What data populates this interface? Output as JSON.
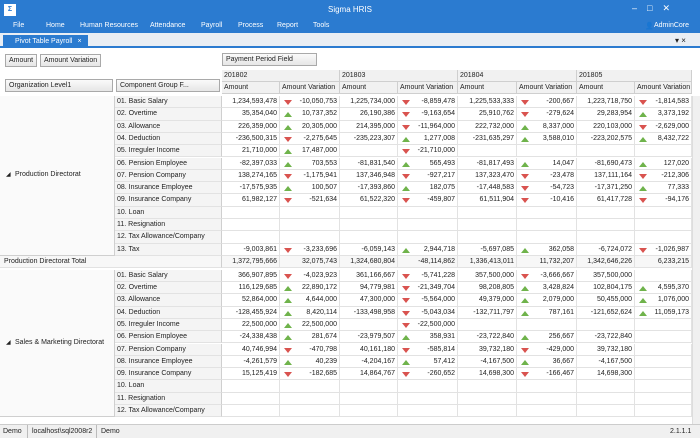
{
  "window": {
    "title": "Sigma HRIS"
  },
  "menu": [
    "File",
    "Home",
    "Human Resources",
    "Attendance",
    "Payroll",
    "Process",
    "Report",
    "Tools"
  ],
  "user": "AdminCore",
  "tab": "Pivot Table Payroll",
  "pivot": {
    "data_fields": [
      "Amount",
      "Amount Variation"
    ],
    "column_field": "Payment Period Field",
    "row_fields": [
      "Organization Level1",
      "Component Group F..."
    ],
    "periods": [
      "201802",
      "201803",
      "201804",
      "201805"
    ],
    "measures": [
      "Amount",
      "Amount Variation"
    ],
    "groups": [
      {
        "name": "Production Directorat",
        "rows": [
          {
            "label": "01. Basic Salary",
            "cells": [
              "1,234,593,478",
              "-10,050,753",
              "1,225,734,000",
              "-8,859,478",
              "1,225,533,333",
              "-200,667",
              "1,223,718,750",
              "-1,814,583"
            ]
          },
          {
            "label": "02. Overtime",
            "cells": [
              "35,354,040",
              "10,737,352",
              "26,190,386",
              "-9,163,654",
              "25,910,762",
              "-279,624",
              "29,283,954",
              "3,373,192"
            ]
          },
          {
            "label": "03. Allowance",
            "cells": [
              "226,359,000",
              "20,305,000",
              "214,395,000",
              "-11,964,000",
              "222,732,000",
              "8,337,000",
              "220,103,000",
              "-2,629,000"
            ]
          },
          {
            "label": "04. Deduction",
            "cells": [
              "-236,500,315",
              "-2,275,645",
              "-235,223,307",
              "1,277,008",
              "-231,635,297",
              "3,588,010",
              "-223,202,575",
              "8,432,722"
            ]
          },
          {
            "label": "05. Irreguler Income",
            "cells": [
              "21,710,000",
              "17,487,000",
              null,
              "-21,710,000",
              null,
              null,
              null,
              null
            ]
          },
          {
            "label": "06. Pension Employee",
            "cells": [
              "-82,397,033",
              "703,553",
              "-81,831,540",
              "565,493",
              "-81,817,493",
              "14,047",
              "-81,690,473",
              "127,020"
            ]
          },
          {
            "label": "07. Pension Company",
            "cells": [
              "138,274,165",
              "-1,175,941",
              "137,346,948",
              "-927,217",
              "137,323,470",
              "-23,478",
              "137,111,164",
              "-212,306"
            ]
          },
          {
            "label": "08. Insurance Employee",
            "cells": [
              "-17,575,935",
              "100,507",
              "-17,393,860",
              "182,075",
              "-17,448,583",
              "-54,723",
              "-17,371,250",
              "77,333"
            ]
          },
          {
            "label": "09. Insurance Company",
            "cells": [
              "61,982,127",
              "-521,634",
              "61,522,320",
              "-459,807",
              "61,511,904",
              "-10,416",
              "61,417,728",
              "-94,176"
            ]
          },
          {
            "label": "10. Loan",
            "cells": [
              null,
              null,
              null,
              null,
              null,
              null,
              null,
              null
            ]
          },
          {
            "label": "11. Resignation",
            "cells": [
              null,
              null,
              null,
              null,
              null,
              null,
              null,
              null
            ]
          },
          {
            "label": "12. Tax Allowance/Company",
            "cells": [
              null,
              null,
              null,
              null,
              null,
              null,
              null,
              null
            ]
          },
          {
            "label": "13. Tax",
            "cells": [
              "-9,003,861",
              "-3,233,696",
              "-6,059,143",
              "2,944,718",
              "-5,697,085",
              "362,058",
              "-6,724,072",
              "-1,026,987"
            ]
          }
        ],
        "total": {
          "label": "Production Directorat Total",
          "cells": [
            "1,372,795,666",
            "32,075,743",
            "1,324,680,804",
            "-48,114,862",
            "1,336,413,011",
            "11,732,207",
            "1,342,646,226",
            "6,233,215"
          ]
        }
      },
      {
        "name": "Sales & Marketing Directorat",
        "rows": [
          {
            "label": "01. Basic Salary",
            "cells": [
              "366,907,895",
              "-4,023,923",
              "361,166,667",
              "-5,741,228",
              "357,500,000",
              "-3,666,667",
              "357,500,000",
              null
            ]
          },
          {
            "label": "02. Overtime",
            "cells": [
              "116,129,685",
              "22,890,172",
              "94,779,981",
              "-21,349,704",
              "98,208,805",
              "3,428,824",
              "102,804,175",
              "4,595,370"
            ]
          },
          {
            "label": "03. Allowance",
            "cells": [
              "52,864,000",
              "4,644,000",
              "47,300,000",
              "-5,564,000",
              "49,379,000",
              "2,079,000",
              "50,455,000",
              "1,076,000"
            ]
          },
          {
            "label": "04. Deduction",
            "cells": [
              "-128,455,924",
              "8,420,114",
              "-133,498,958",
              "-5,043,034",
              "-132,711,797",
              "787,161",
              "-121,652,624",
              "11,059,173"
            ]
          },
          {
            "label": "05. Irreguler Income",
            "cells": [
              "22,500,000",
              "22,500,000",
              null,
              "-22,500,000",
              null,
              null,
              null,
              null
            ]
          },
          {
            "label": "06. Pension Employee",
            "cells": [
              "-24,338,438",
              "281,674",
              "-23,979,507",
              "358,931",
              "-23,722,840",
              "256,667",
              "-23,722,840",
              null
            ]
          },
          {
            "label": "07. Pension Company",
            "cells": [
              "40,746,994",
              "-470,798",
              "40,161,180",
              "-585,814",
              "39,732,180",
              "-429,000",
              "39,732,180",
              null
            ]
          },
          {
            "label": "08. Insurance Employee",
            "cells": [
              "-4,261,579",
              "40,239",
              "-4,204,167",
              "57,412",
              "-4,167,500",
              "36,667",
              "-4,167,500",
              null
            ]
          },
          {
            "label": "09. Insurance Company",
            "cells": [
              "15,125,419",
              "-182,685",
              "14,864,767",
              "-260,652",
              "14,698,300",
              "-166,467",
              "14,698,300",
              null
            ]
          },
          {
            "label": "10. Loan",
            "cells": [
              null,
              null,
              null,
              null,
              null,
              null,
              null,
              null
            ]
          },
          {
            "label": "11. Resignation",
            "cells": [
              null,
              null,
              null,
              null,
              null,
              null,
              null,
              null
            ]
          },
          {
            "label": "12. Tax Allowance/Company",
            "cells": [
              null,
              null,
              null,
              null,
              null,
              null,
              null,
              null
            ]
          }
        ]
      }
    ]
  },
  "status": [
    "Demo",
    "localhost\\sql2008r2",
    "Demo"
  ],
  "version": "2.1.1.1"
}
